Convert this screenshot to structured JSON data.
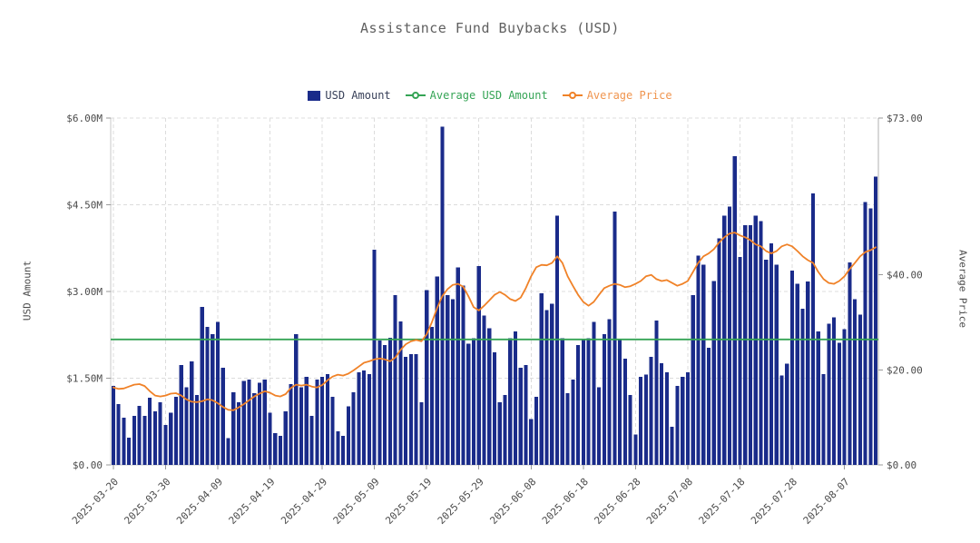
{
  "title": "Assistance Fund Buybacks (USD)",
  "colors": {
    "bar": "#1a2b8a",
    "bar_legend_text": "#384059",
    "average_usd_line": "#35a455",
    "average_price_line": "#f08228",
    "average_price_text": "#f0954f",
    "grid": "#dcdcdc",
    "spine": "#c9c9c9",
    "right_spine": "#b0b0b0",
    "tick": "#9a9a9a",
    "tick_text": "#4a4a4a",
    "title_text": "#606060"
  },
  "legend": {
    "items": [
      {
        "label": "USD Amount",
        "marker": "square",
        "color": "#1a2b8a",
        "text_color": "#384059"
      },
      {
        "label": "Average USD Amount",
        "marker": "line-circle",
        "color": "#35a455",
        "text_color": "#35a455"
      },
      {
        "label": "Average Price",
        "marker": "line-circle",
        "color": "#f08228",
        "text_color": "#f0954f"
      }
    ]
  },
  "axes": {
    "left": {
      "title": "USD Amount",
      "tick_labels": [
        "$0.00",
        "$1.50M",
        "$3.00M",
        "$4.50M",
        "$6.00M"
      ],
      "tick_values": [
        0,
        1.5,
        3,
        4.5,
        6
      ],
      "max_value": 6
    },
    "right": {
      "title": "Average Price",
      "tick_labels": [
        "$0.00",
        "$20.00",
        "$40.00",
        "$73.00"
      ],
      "tick_values": [
        0,
        20,
        40,
        73
      ],
      "max_value": 73
    }
  },
  "chart_data": {
    "type": "bar",
    "title": "Assistance Fund Buybacks (USD)",
    "x_axis": {
      "start_date": "2025-03-20",
      "end_date": "2025-08-13",
      "frequency": "daily",
      "tick_labels": [
        "2025-03-20",
        "2025-03-30",
        "2025-04-09",
        "2025-04-19",
        "2025-04-29",
        "2025-05-09",
        "2025-05-19",
        "2025-05-29",
        "2025-06-08",
        "2025-06-18",
        "2025-06-28",
        "2025-07-08",
        "2025-07-18",
        "2025-07-28",
        "2025-08-07"
      ],
      "tick_indices": [
        0,
        10,
        20,
        30,
        40,
        50,
        60,
        70,
        80,
        90,
        100,
        110,
        120,
        130,
        140
      ]
    },
    "ylabel_left": "USD Amount",
    "ylabel_right": "Average Price",
    "ylim_left_musd": [
      0,
      6
    ],
    "ylim_right_usd": [
      0,
      73
    ],
    "grid": true,
    "legend_position": "top",
    "series": [
      {
        "name": "USD Amount",
        "type": "bar",
        "axis": "left",
        "unit": "million_usd",
        "values": [
          1.37,
          1.05,
          0.82,
          0.47,
          0.85,
          1.02,
          0.85,
          1.16,
          0.93,
          1.08,
          0.69,
          0.9,
          1.18,
          1.73,
          1.34,
          1.79,
          1.21,
          2.73,
          2.39,
          2.26,
          2.47,
          1.68,
          0.46,
          1.26,
          1.08,
          1.45,
          1.48,
          1.24,
          1.42,
          1.48,
          0.9,
          0.55,
          0.5,
          0.93,
          1.4,
          2.26,
          1.34,
          1.52,
          0.85,
          1.48,
          1.52,
          1.57,
          1.18,
          0.58,
          0.5,
          1.01,
          1.26,
          1.6,
          1.63,
          1.57,
          3.72,
          2.15,
          2.07,
          2.2,
          2.94,
          2.48,
          1.87,
          1.92,
          1.92,
          1.08,
          3.02,
          2.39,
          3.26,
          5.85,
          2.94,
          2.87,
          3.42,
          3.1,
          2.1,
          2.19,
          3.44,
          2.58,
          2.36,
          1.95,
          1.08,
          1.21,
          2.19,
          2.31,
          1.68,
          1.73,
          0.79,
          1.18,
          2.97,
          2.68,
          2.79,
          4.31,
          2.19,
          1.24,
          1.48,
          2.07,
          2.16,
          2.19,
          2.47,
          1.34,
          2.26,
          2.52,
          4.38,
          2.16,
          1.84,
          1.21,
          0.53,
          1.52,
          1.56,
          1.87,
          2.5,
          1.76,
          1.6,
          0.66,
          1.37,
          1.52,
          1.6,
          2.94,
          3.62,
          3.46,
          2.03,
          3.18,
          3.92,
          4.31,
          4.47,
          5.34,
          3.6,
          4.15,
          4.15,
          4.31,
          4.22,
          3.55,
          3.83,
          3.46,
          1.55,
          1.75,
          3.36,
          3.13,
          2.7,
          3.17,
          4.7,
          2.31,
          1.57,
          2.44,
          2.55,
          2.11,
          2.35,
          3.5,
          2.87,
          2.6,
          4.55,
          4.44,
          4.99
        ]
      },
      {
        "name": "Average USD Amount",
        "type": "line",
        "axis": "left",
        "unit": "million_usd",
        "value": 2.17
      },
      {
        "name": "Average Price",
        "type": "line",
        "axis": "right",
        "unit": "usd",
        "values": [
          16.3,
          16.0,
          16.1,
          16.5,
          16.9,
          17.0,
          16.6,
          15.5,
          14.6,
          14.4,
          14.6,
          15.0,
          15.1,
          14.6,
          13.8,
          13.3,
          13.2,
          13.4,
          13.8,
          13.6,
          13.0,
          12.2,
          11.6,
          11.5,
          12.1,
          12.8,
          13.6,
          14.4,
          15.0,
          15.5,
          15.2,
          14.6,
          14.4,
          14.9,
          16.2,
          16.9,
          16.7,
          16.9,
          16.5,
          16.3,
          16.8,
          17.8,
          18.6,
          19.0,
          18.8,
          19.2,
          19.9,
          20.7,
          21.5,
          21.8,
          22.2,
          22.4,
          22.2,
          21.8,
          22.6,
          24.2,
          25.4,
          26.0,
          26.3,
          26.0,
          27.5,
          30.0,
          33.0,
          35.5,
          37.0,
          37.9,
          38.1,
          37.5,
          35.5,
          33.2,
          32.5,
          33.5,
          34.6,
          35.8,
          36.4,
          35.8,
          34.9,
          34.5,
          35.2,
          37.2,
          39.7,
          41.6,
          42.1,
          42.0,
          42.5,
          43.9,
          42.5,
          39.7,
          37.7,
          35.8,
          34.3,
          33.5,
          34.3,
          35.8,
          37.2,
          37.7,
          38.1,
          37.9,
          37.4,
          37.6,
          38.1,
          38.7,
          39.7,
          40.0,
          39.1,
          38.7,
          38.9,
          38.3,
          37.7,
          38.1,
          38.7,
          40.6,
          42.5,
          43.9,
          44.5,
          45.4,
          46.8,
          47.9,
          48.7,
          48.9,
          48.3,
          47.9,
          47.3,
          46.4,
          46.0,
          45.0,
          44.5,
          45.0,
          46.0,
          46.4,
          46.0,
          45.0,
          43.9,
          43.1,
          42.5,
          40.6,
          39.1,
          38.3,
          38.1,
          38.7,
          39.7,
          41.2,
          42.5,
          43.9,
          44.8,
          45.2,
          45.8
        ]
      }
    ]
  }
}
